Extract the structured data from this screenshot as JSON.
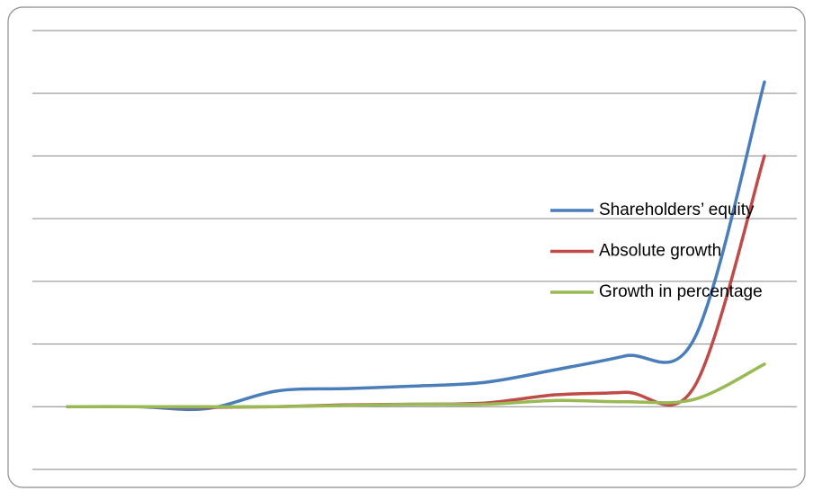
{
  "chart_data": {
    "type": "line",
    "categories": [
      null,
      null,
      null,
      null,
      null,
      null,
      null,
      null,
      null,
      null,
      null
    ],
    "series": [
      {
        "name": "Shareholders’ equity",
        "color": "#4a7ebb",
        "values": [
          0,
          0,
          -0.03,
          0.25,
          0.29,
          0.33,
          0.39,
          0.59,
          0.81,
          1.1,
          5.18
        ]
      },
      {
        "name": "Absolute growth",
        "color": "#be4b48",
        "values": [
          0,
          0,
          -0.01,
          0,
          0.03,
          0.04,
          0.06,
          0.19,
          0.23,
          0.33,
          4.0
        ]
      },
      {
        "name": "Growth in percentage",
        "color": "#98b954",
        "values": [
          0,
          0,
          0,
          0,
          0.02,
          0.04,
          0.04,
          0.1,
          0.08,
          0.12,
          0.68
        ]
      }
    ],
    "ylim": [
      -1,
      6
    ],
    "yticks": [
      -1,
      0,
      1,
      2,
      3,
      4,
      5,
      6
    ],
    "grid": true,
    "legend": "right"
  }
}
